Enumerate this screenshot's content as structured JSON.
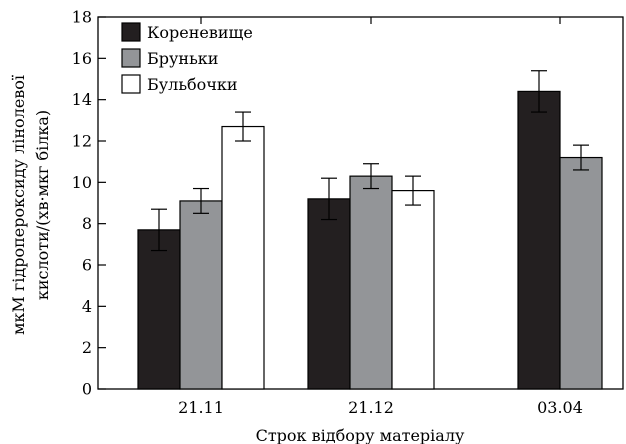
{
  "chart_data": {
    "type": "bar",
    "categories": [
      "21.11",
      "21.12",
      "03.04"
    ],
    "series": [
      {
        "name": "Кореневище",
        "color": "#231f20",
        "values": [
          7.7,
          9.2,
          14.4
        ],
        "errors": [
          1.0,
          1.0,
          1.0
        ]
      },
      {
        "name": "Бруньки",
        "color": "#939598",
        "values": [
          9.1,
          10.3,
          11.2
        ],
        "errors": [
          0.6,
          0.6,
          0.6
        ]
      },
      {
        "name": "Бульбочки",
        "color": "#ffffff",
        "values": [
          12.7,
          9.6,
          null
        ],
        "errors": [
          0.7,
          0.7,
          null
        ]
      }
    ],
    "ylim": [
      0,
      18
    ],
    "yticks": [
      "0",
      "2",
      "4",
      "6",
      "8",
      "10",
      "12",
      "14",
      "16",
      "18"
    ],
    "xlabel": "Строк відбору матеріалу",
    "ylabel_lines": [
      "мкМ гідропероксиду лінолевої",
      "кислоти/(хв·мкг білка)"
    ],
    "legend_position": "top-left",
    "grid": false
  }
}
